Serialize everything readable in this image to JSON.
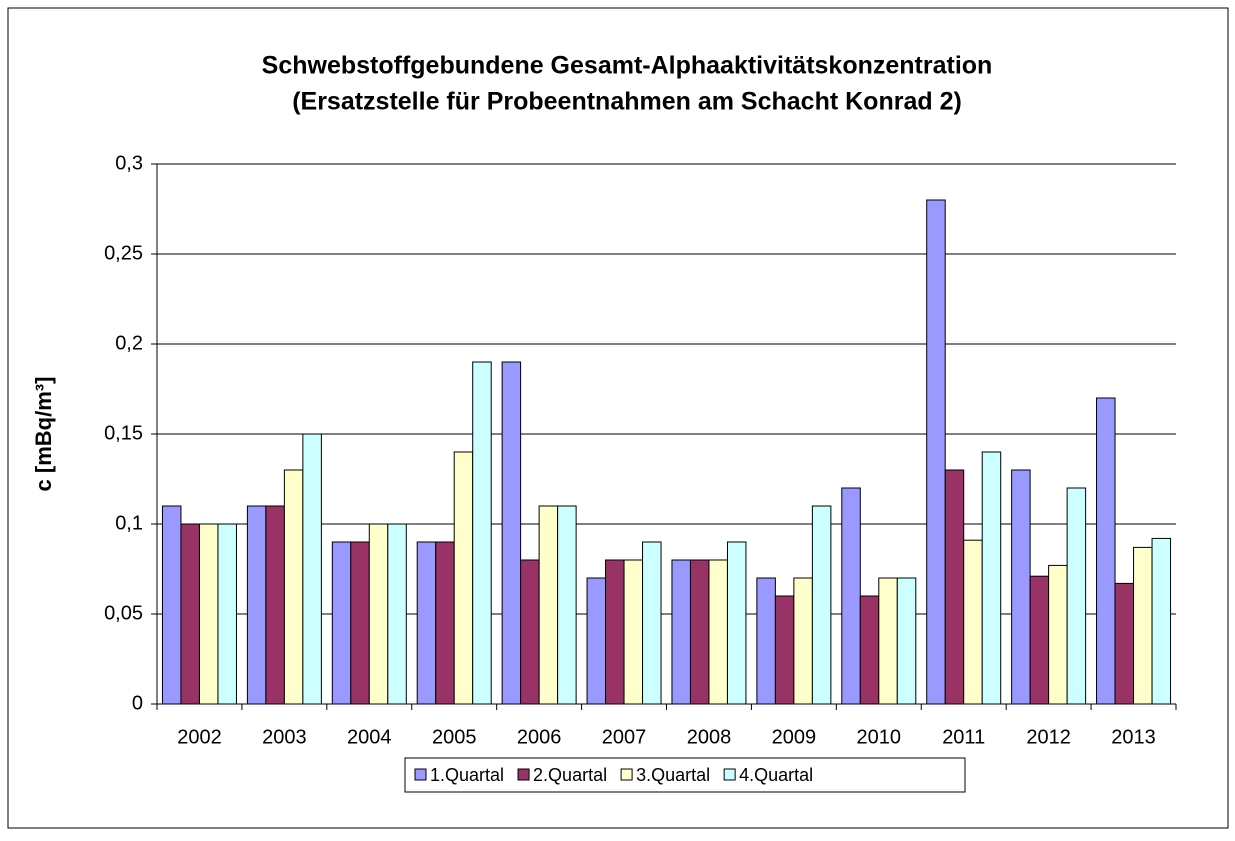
{
  "chart_data": {
    "type": "bar",
    "title": "Schwebstoffgebundene Gesamt-Alphaaktivitätskonzentration",
    "subtitle": "(Ersatzstelle für Probeentnahmen am Schacht Konrad 2)",
    "y_label": "c [mBq/m³]",
    "categories": [
      "2002",
      "2003",
      "2004",
      "2005",
      "2006",
      "2007",
      "2008",
      "2009",
      "2010",
      "2011",
      "2012",
      "2013"
    ],
    "series": [
      {
        "name": "1.Quartal",
        "color": "#9999ff",
        "values": [
          0.11,
          0.11,
          0.09,
          0.09,
          0.19,
          0.07,
          0.08,
          0.07,
          0.12,
          0.28,
          0.13,
          0.17
        ]
      },
      {
        "name": "2.Quartal",
        "color": "#993366",
        "values": [
          0.1,
          0.11,
          0.09,
          0.09,
          0.08,
          0.08,
          0.08,
          0.06,
          0.06,
          0.13,
          0.071,
          0.067
        ]
      },
      {
        "name": "3.Quartal",
        "color": "#ffffcc",
        "values": [
          0.1,
          0.13,
          0.1,
          0.14,
          0.11,
          0.08,
          0.08,
          0.07,
          0.07,
          0.091,
          0.077,
          0.087
        ]
      },
      {
        "name": "4.Quartal",
        "color": "#ccffff",
        "values": [
          0.1,
          0.15,
          0.1,
          0.19,
          0.11,
          0.09,
          0.09,
          0.11,
          0.07,
          0.14,
          0.12,
          0.092
        ]
      }
    ],
    "ylim": [
      0,
      0.3
    ],
    "yticks": [
      0,
      {
        "value": 0.05,
        "label": "0,05"
      },
      {
        "value": 0.1,
        "label": "0,1"
      },
      {
        "value": 0.15,
        "label": "0,15"
      },
      {
        "value": 0.2,
        "label": "0,2"
      },
      {
        "value": 0.25,
        "label": "0,25"
      },
      {
        "value": 0.3,
        "label": "0,3"
      }
    ],
    "grid": true,
    "legend": "bottom"
  }
}
